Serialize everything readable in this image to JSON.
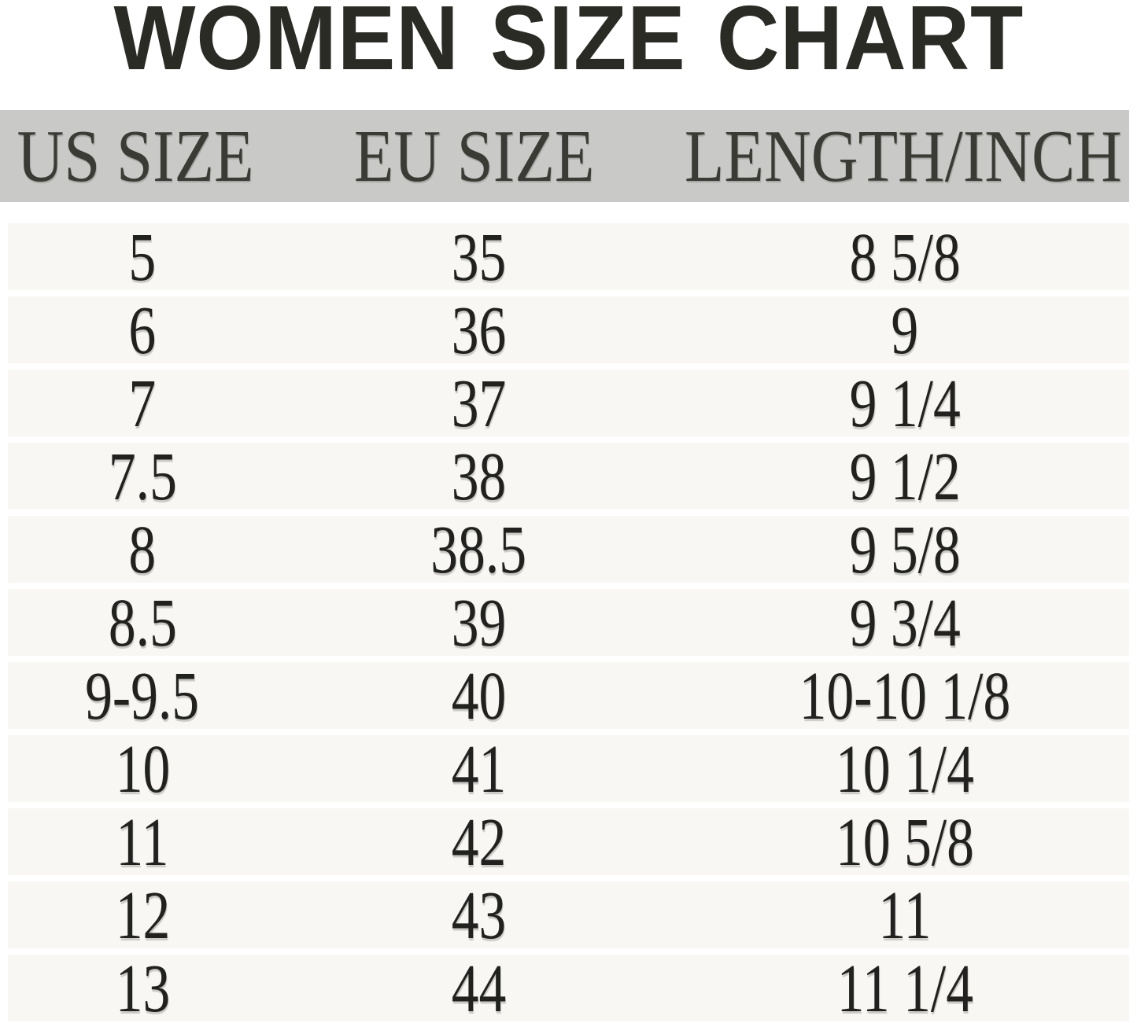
{
  "title": "WOMEN SIZE CHART",
  "colors": {
    "background": "#ffffff",
    "header_band": "#c9c9c7",
    "row_band": "#f8f7f4",
    "title_text": "#2b2b26",
    "header_text": "#3b3b36",
    "cell_text": "#21211f"
  },
  "chart_data": {
    "type": "table",
    "title": "WOMEN SIZE CHART",
    "columns": [
      "US SIZE",
      "EU SIZE",
      "LENGTH/INCH"
    ],
    "rows": [
      [
        "5",
        "35",
        "8 5/8"
      ],
      [
        "6",
        "36",
        "9"
      ],
      [
        "7",
        "37",
        "9 1/4"
      ],
      [
        "7.5",
        "38",
        "9 1/2"
      ],
      [
        "8",
        "38.5",
        "9 5/8"
      ],
      [
        "8.5",
        "39",
        "9 3/4"
      ],
      [
        "9-9.5",
        "40",
        "10-10 1/8"
      ],
      [
        "10",
        "41",
        "10 1/4"
      ],
      [
        "11",
        "42",
        "10 5/8"
      ],
      [
        "12",
        "43",
        "11"
      ],
      [
        "13",
        "44",
        "11 1/4"
      ]
    ]
  }
}
